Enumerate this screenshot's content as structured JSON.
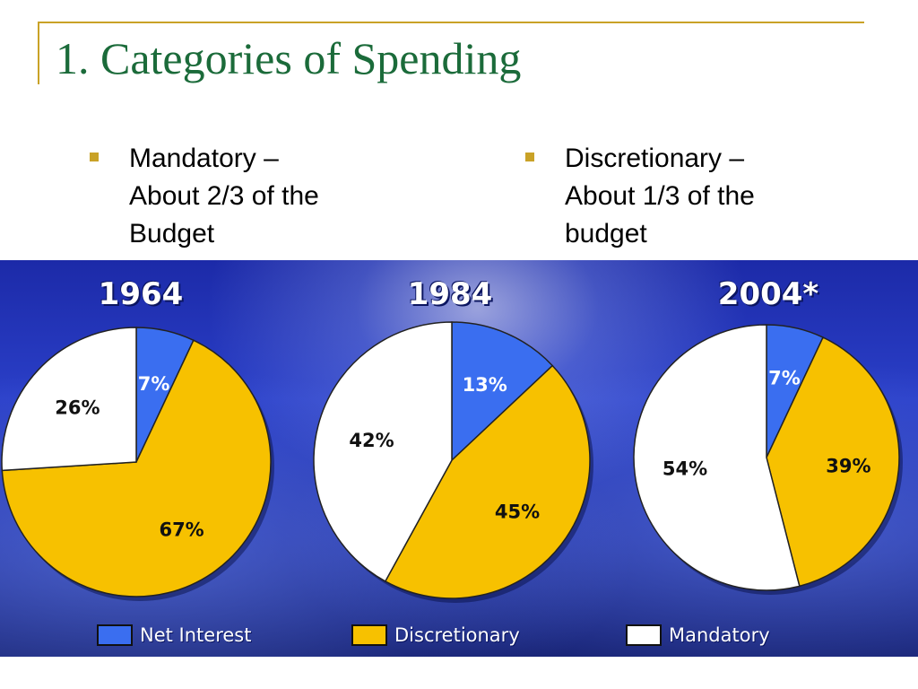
{
  "slide": {
    "title": "1. Categories of Spending",
    "bullets": [
      {
        "text": "Mandatory – About 2/3 of the Budget"
      },
      {
        "text": "Discretionary – About 1/3 of the budget"
      }
    ],
    "accent_color": "#c9a227",
    "title_color": "#1b6b3a"
  },
  "chart_data": [
    {
      "type": "pie",
      "title": "1964",
      "slices": [
        {
          "category": "Net Interest",
          "value": 7,
          "label": "7%"
        },
        {
          "category": "Discretionary",
          "value": 67,
          "label": "67%"
        },
        {
          "category": "Mandatory",
          "value": 26,
          "label": "26%"
        }
      ]
    },
    {
      "type": "pie",
      "title": "1984",
      "slices": [
        {
          "category": "Net Interest",
          "value": 13,
          "label": "13%"
        },
        {
          "category": "Discretionary",
          "value": 45,
          "label": "45%"
        },
        {
          "category": "Mandatory",
          "value": 42,
          "label": "42%"
        }
      ]
    },
    {
      "type": "pie",
      "title": "2004*",
      "slices": [
        {
          "category": "Net Interest",
          "value": 7,
          "label": "7%"
        },
        {
          "category": "Discretionary",
          "value": 39,
          "label": "39%"
        },
        {
          "category": "Mandatory",
          "value": 54,
          "label": "54%"
        }
      ]
    }
  ],
  "legend": {
    "placement": "bottom",
    "items": [
      {
        "label": "Net Interest",
        "color": "#3a6ef0"
      },
      {
        "label": "Discretionary",
        "color": "#f7c100"
      },
      {
        "label": "Mandatory",
        "color": "#ffffff"
      }
    ]
  }
}
